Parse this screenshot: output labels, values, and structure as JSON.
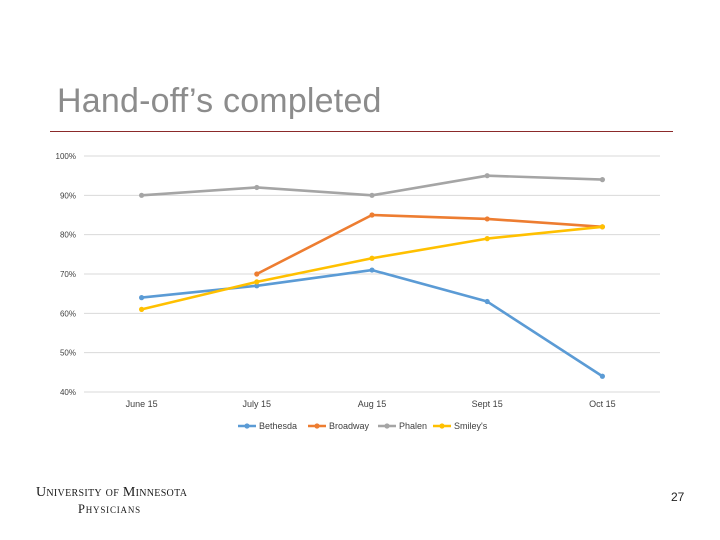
{
  "slide": {
    "title": "Hand-off’s completed",
    "page_number": "27",
    "logo": {
      "line1": "University of Minnesota",
      "line2": "Physicians"
    }
  },
  "colors": {
    "title_rule": "#8b2a2a",
    "grid": "#d9d9d9",
    "Bethesda": "#5b9bd5",
    "Broadway": "#ed7d31",
    "Phalen": "#a5a5a5",
    "Smiley's": "#ffc000"
  },
  "chart_data": {
    "type": "line",
    "title": "",
    "xlabel": "",
    "ylabel": "",
    "categories": [
      "June 15",
      "July 15",
      "Aug 15",
      "Sept 15",
      "Oct 15"
    ],
    "y_ticks": [
      "40%",
      "50%",
      "60%",
      "70%",
      "80%",
      "90%",
      "100%"
    ],
    "ylim": [
      40,
      100
    ],
    "grid": true,
    "legend_position": "bottom",
    "series": [
      {
        "name": "Bethesda",
        "values": [
          64,
          67,
          71,
          63,
          44
        ]
      },
      {
        "name": "Broadway",
        "values": [
          null,
          70,
          85,
          84,
          82
        ]
      },
      {
        "name": "Phalen",
        "values": [
          90,
          92,
          90,
          95,
          94
        ]
      },
      {
        "name": "Smiley's",
        "values": [
          61,
          68,
          74,
          79,
          82
        ]
      }
    ]
  }
}
